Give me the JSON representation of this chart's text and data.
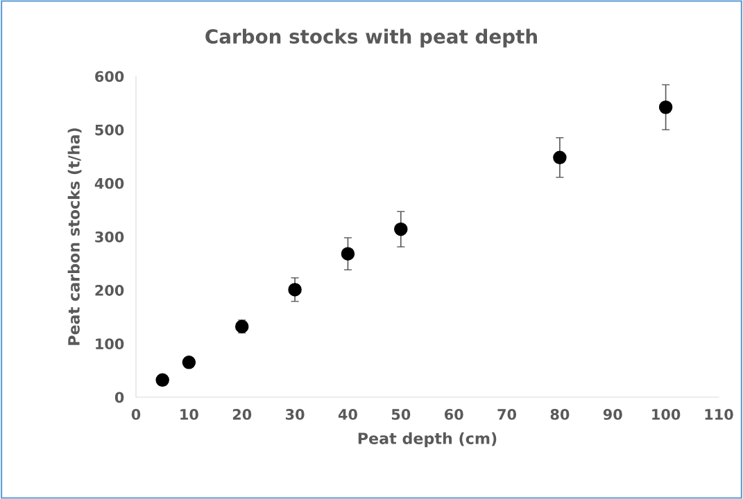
{
  "chart_data": {
    "type": "scatter",
    "title": "Carbon stocks with peat depth",
    "xlabel": "Peat depth (cm)",
    "ylabel": "Peat carbon stocks (t/ha)",
    "x": [
      5,
      10,
      20,
      30,
      40,
      50,
      80,
      100
    ],
    "values": [
      32,
      65,
      132,
      201,
      268,
      314,
      448,
      542
    ],
    "errors": [
      null,
      null,
      12,
      22,
      30,
      33,
      37,
      42
    ],
    "color": "#000000",
    "marker": "circle",
    "grid": false,
    "legend": false,
    "xlim": [
      0,
      110
    ],
    "xticks": [
      0,
      10,
      20,
      30,
      40,
      50,
      60,
      70,
      80,
      90,
      100,
      110
    ],
    "ylim": [
      0,
      600
    ],
    "yticks": [
      0,
      100,
      200,
      300,
      400,
      500,
      600
    ]
  }
}
